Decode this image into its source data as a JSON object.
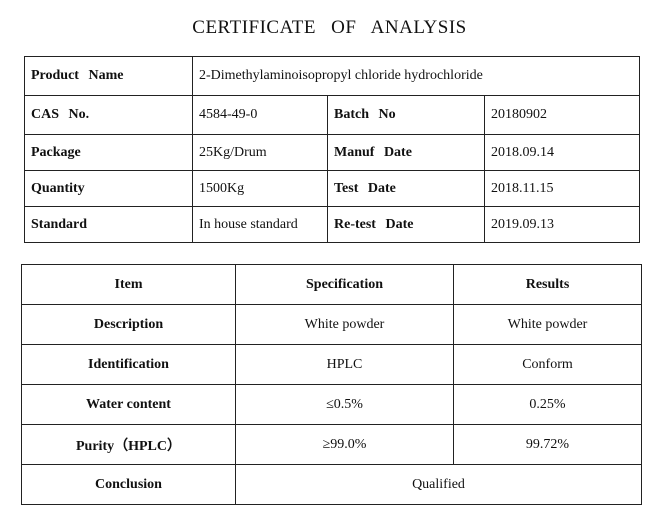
{
  "title": "CERTIFICATE OF ANALYSIS",
  "product_info": {
    "product_name_label": "Product Name",
    "product_name": "2-Dimethylaminoisopropyl chloride hydrochloride",
    "cas_label": "CAS No.",
    "cas": "4584-49-0",
    "batch_label": "Batch No",
    "batch": "20180902",
    "package_label": "Package",
    "package": "25Kg/Drum",
    "manuf_date_label": "Manuf Date",
    "manuf_date": "2018.09.14",
    "quantity_label": "Quantity",
    "quantity": "1500Kg",
    "test_date_label": "Test Date",
    "test_date": "2018.11.15",
    "standard_label": "Standard",
    "standard": "In house standard",
    "retest_date_label": "Re-test Date",
    "retest_date": "2019.09.13"
  },
  "tests": {
    "headers": [
      "Item",
      "Specification",
      "Results"
    ],
    "rows": [
      {
        "item": "Description",
        "spec": "White powder",
        "result": "White powder"
      },
      {
        "item": "Identification",
        "spec": "HPLC",
        "result": "Conform"
      },
      {
        "item": "Water content",
        "spec": "≤0.5%",
        "result": "0.25%"
      },
      {
        "item": "Purity（HPLC）",
        "spec": "≥99.0%",
        "result": "99.72%"
      }
    ],
    "conclusion_label": "Conclusion",
    "conclusion": "Qualified"
  }
}
